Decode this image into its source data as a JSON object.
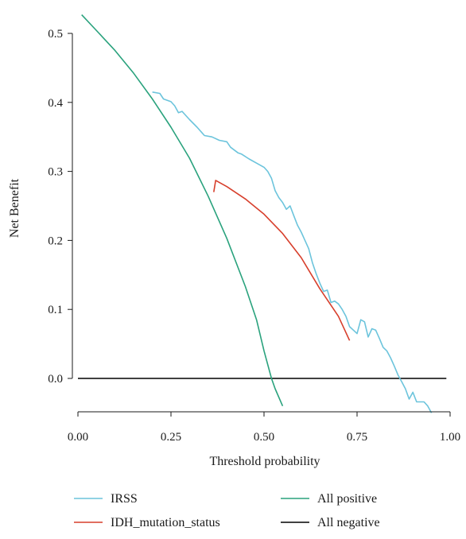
{
  "chart_data": {
    "type": "line",
    "title": "",
    "xlabel": "Threshold probability",
    "ylabel": "Net Benefit",
    "xlim": [
      0,
      1
    ],
    "ylim": [
      -0.05,
      0.53
    ],
    "x_ticks": [
      "0.00",
      "0.25",
      "0.50",
      "0.75",
      "1.00"
    ],
    "y_ticks": [
      "0.0",
      "0.1",
      "0.2",
      "0.3",
      "0.4",
      "0.5"
    ],
    "grid": false,
    "legend_position": "bottom",
    "series": [
      {
        "name": "IRSS",
        "color": "#6cc4dc",
        "points": [
          [
            0.2,
            0.415
          ],
          [
            0.22,
            0.413
          ],
          [
            0.23,
            0.405
          ],
          [
            0.25,
            0.401
          ],
          [
            0.26,
            0.395
          ],
          [
            0.27,
            0.385
          ],
          [
            0.28,
            0.387
          ],
          [
            0.3,
            0.375
          ],
          [
            0.32,
            0.364
          ],
          [
            0.34,
            0.352
          ],
          [
            0.36,
            0.35
          ],
          [
            0.38,
            0.345
          ],
          [
            0.4,
            0.343
          ],
          [
            0.41,
            0.335
          ],
          [
            0.43,
            0.327
          ],
          [
            0.44,
            0.325
          ],
          [
            0.46,
            0.318
          ],
          [
            0.48,
            0.312
          ],
          [
            0.5,
            0.306
          ],
          [
            0.51,
            0.3
          ],
          [
            0.52,
            0.29
          ],
          [
            0.53,
            0.272
          ],
          [
            0.54,
            0.262
          ],
          [
            0.55,
            0.255
          ],
          [
            0.56,
            0.245
          ],
          [
            0.57,
            0.25
          ],
          [
            0.58,
            0.236
          ],
          [
            0.59,
            0.222
          ],
          [
            0.6,
            0.212
          ],
          [
            0.61,
            0.2
          ],
          [
            0.62,
            0.188
          ],
          [
            0.63,
            0.168
          ],
          [
            0.64,
            0.152
          ],
          [
            0.65,
            0.138
          ],
          [
            0.66,
            0.126
          ],
          [
            0.67,
            0.128
          ],
          [
            0.68,
            0.11
          ],
          [
            0.69,
            0.112
          ],
          [
            0.7,
            0.108
          ],
          [
            0.71,
            0.1
          ],
          [
            0.72,
            0.09
          ],
          [
            0.73,
            0.075
          ],
          [
            0.74,
            0.07
          ],
          [
            0.75,
            0.065
          ],
          [
            0.76,
            0.085
          ],
          [
            0.77,
            0.082
          ],
          [
            0.78,
            0.06
          ],
          [
            0.79,
            0.072
          ],
          [
            0.8,
            0.07
          ],
          [
            0.81,
            0.058
          ],
          [
            0.82,
            0.045
          ],
          [
            0.83,
            0.04
          ],
          [
            0.84,
            0.03
          ],
          [
            0.85,
            0.018
          ],
          [
            0.86,
            0.005
          ],
          [
            0.87,
            -0.005
          ],
          [
            0.88,
            -0.015
          ],
          [
            0.89,
            -0.03
          ],
          [
            0.9,
            -0.02
          ],
          [
            0.91,
            -0.034
          ],
          [
            0.93,
            -0.034
          ],
          [
            0.94,
            -0.04
          ],
          [
            0.95,
            -0.05
          ]
        ]
      },
      {
        "name": "IDH_mutation_status",
        "color": "#d73f2c",
        "points": [
          [
            0.365,
            0.27
          ],
          [
            0.37,
            0.287
          ],
          [
            0.4,
            0.278
          ],
          [
            0.45,
            0.26
          ],
          [
            0.5,
            0.238
          ],
          [
            0.55,
            0.21
          ],
          [
            0.6,
            0.175
          ],
          [
            0.65,
            0.13
          ],
          [
            0.7,
            0.09
          ],
          [
            0.73,
            0.055
          ]
        ]
      },
      {
        "name": "All positive",
        "color": "#2aa27d",
        "points": [
          [
            0.01,
            0.527
          ],
          [
            0.05,
            0.504
          ],
          [
            0.1,
            0.475
          ],
          [
            0.15,
            0.442
          ],
          [
            0.2,
            0.405
          ],
          [
            0.25,
            0.364
          ],
          [
            0.3,
            0.319
          ],
          [
            0.35,
            0.264
          ],
          [
            0.4,
            0.203
          ],
          [
            0.45,
            0.133
          ],
          [
            0.48,
            0.085
          ],
          [
            0.5,
            0.04
          ],
          [
            0.52,
            0.0
          ],
          [
            0.53,
            -0.015
          ],
          [
            0.55,
            -0.04
          ]
        ]
      },
      {
        "name": "All negative",
        "color": "#000000",
        "points": [
          [
            0.0,
            0.0
          ],
          [
            0.99,
            0.0
          ]
        ]
      }
    ]
  }
}
